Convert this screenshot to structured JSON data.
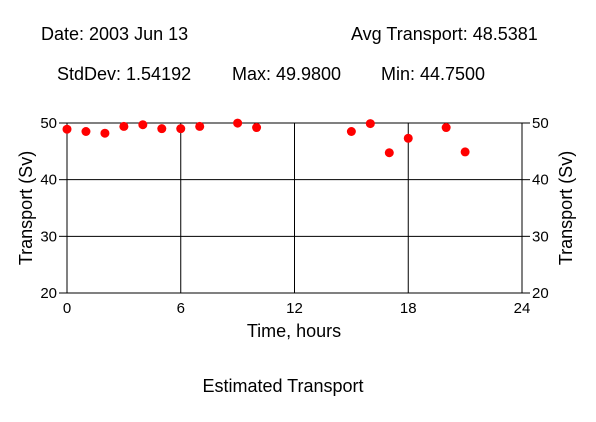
{
  "header": {
    "date_line": "Date: 2003 Jun 13",
    "avg_line": "Avg Transport: 48.5381",
    "stddev_line": "StdDev: 1.54192",
    "max_line": "Max: 49.9800",
    "min_line": "Min: 44.7500"
  },
  "chart_data": {
    "type": "scatter",
    "title": "Estimated Transport",
    "xlabel": "Time, hours",
    "ylabel": "Transport (Sv)",
    "ylabel_right": "Transport (Sv)",
    "xlim": [
      0,
      24
    ],
    "ylim": [
      20,
      50
    ],
    "x_ticks": [
      0,
      6,
      12,
      18,
      24
    ],
    "y_ticks": [
      20,
      30,
      40,
      50
    ],
    "grid": true,
    "marker_color": "#ff0000",
    "series": [
      {
        "x": [
          0,
          1,
          2,
          3,
          4,
          5,
          6,
          7,
          9,
          10,
          15,
          16,
          17,
          18,
          20,
          21
        ],
        "y": [
          48.9,
          48.5,
          48.2,
          49.4,
          49.7,
          49.0,
          49.0,
          49.4,
          49.98,
          49.2,
          48.5,
          49.9,
          44.75,
          47.3,
          49.2,
          44.9
        ]
      }
    ]
  }
}
